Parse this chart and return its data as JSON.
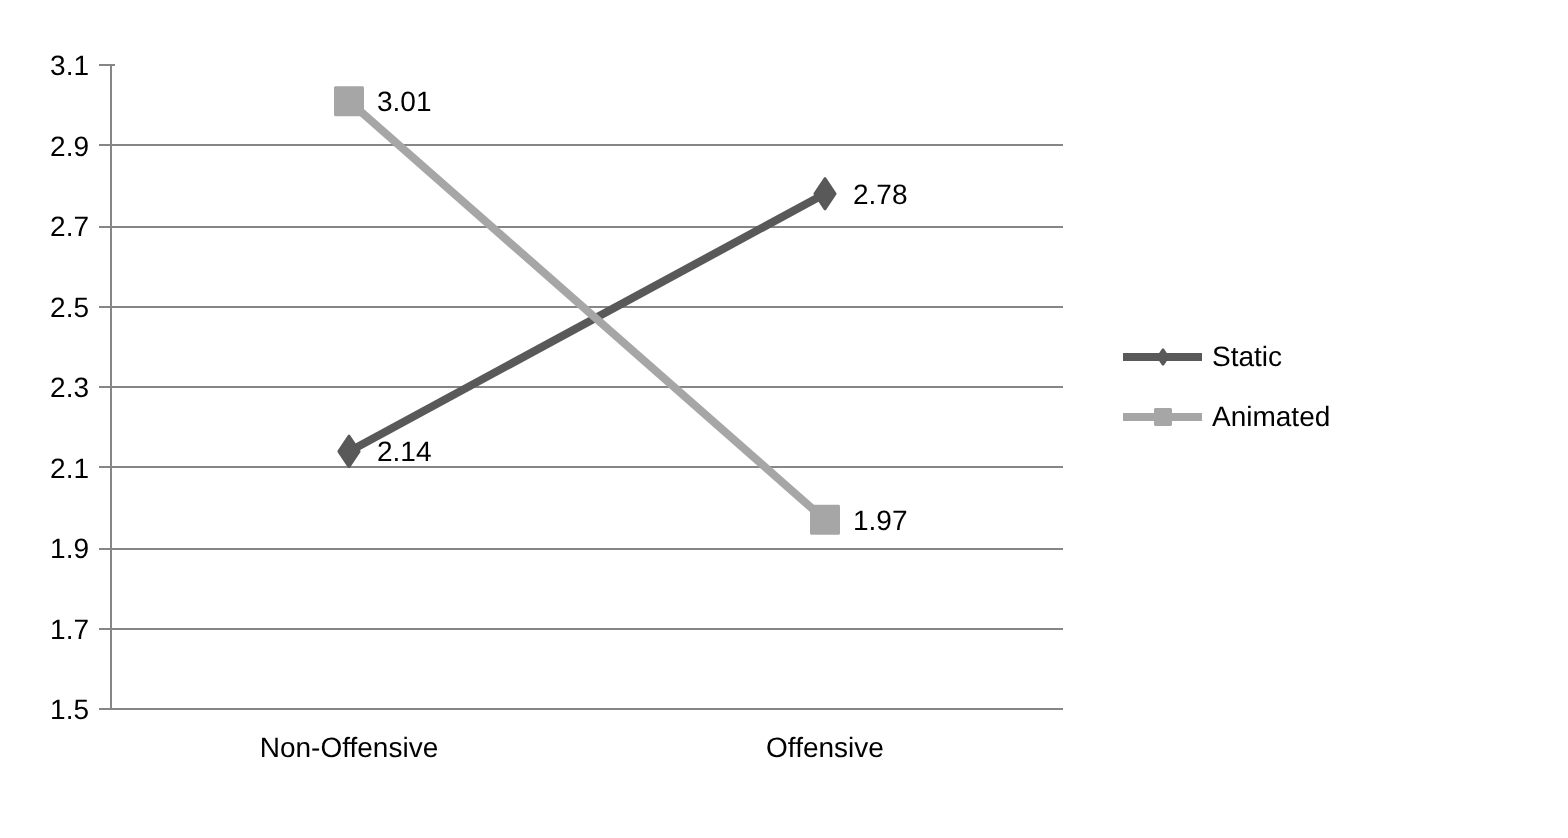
{
  "chart_data": {
    "type": "line",
    "categories": [
      "Non-Offensive",
      "Offensive"
    ],
    "series": [
      {
        "name": "Static",
        "color": "#595959",
        "values": [
          2.14,
          2.78
        ],
        "marker": "diamond"
      },
      {
        "name": "Animated",
        "color": "#a6a6a6",
        "values": [
          3.01,
          1.97
        ],
        "marker": "square"
      }
    ],
    "ylim": [
      1.5,
      3.1
    ],
    "yticks": [
      1.5,
      1.7,
      1.9,
      2.1,
      2.3,
      2.5,
      2.7,
      2.9,
      3.1
    ],
    "grid": "y",
    "legend": "right",
    "data_labels": true
  }
}
